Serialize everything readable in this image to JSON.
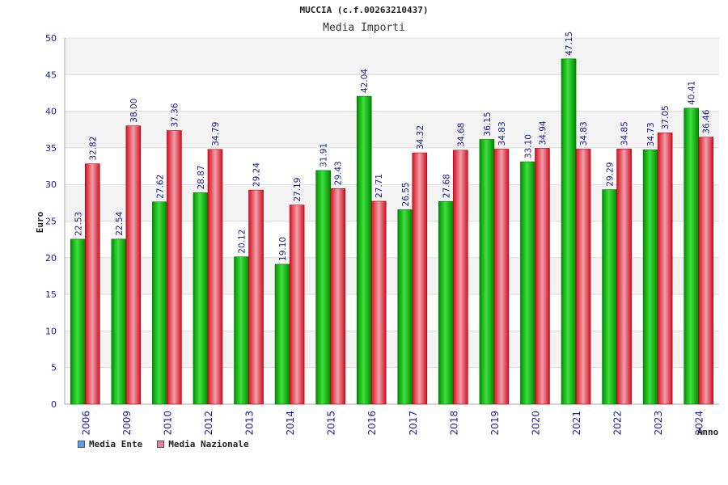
{
  "chart_data": {
    "type": "bar",
    "title": "MUCCIA (c.f.00263210437)",
    "subtitle": "Media Importi",
    "ylabel": "Euro",
    "xlabel": "Anno",
    "ylim": [
      0,
      50
    ],
    "yticks": [
      0,
      5,
      10,
      15,
      20,
      25,
      30,
      35,
      40,
      45,
      50
    ],
    "grid": true,
    "legend_position": "bottom-left",
    "categories": [
      "2006",
      "2009",
      "2010",
      "2012",
      "2013",
      "2014",
      "2015",
      "2016",
      "2017",
      "2018",
      "2019",
      "2020",
      "2021",
      "2022",
      "2023",
      "2024"
    ],
    "series": [
      {
        "name": "Media Ente",
        "color": "#00b000",
        "legend_color": "#5aa0e6",
        "values": [
          22.53,
          22.54,
          27.62,
          28.87,
          20.12,
          19.1,
          31.91,
          42.04,
          26.55,
          27.68,
          36.15,
          33.1,
          47.15,
          29.29,
          34.73,
          40.41
        ],
        "labels": [
          "22.53",
          "22.54",
          "27.62",
          "28.87",
          "20.12",
          "19.10",
          "31.91",
          "42.04",
          "26.55",
          "27.68",
          "36.15",
          "33.10",
          "47.15",
          "29.29",
          "34.73",
          "40.41"
        ]
      },
      {
        "name": "Media Nazionale",
        "color": "#e8303c",
        "legend_color": "#e080a8",
        "values": [
          32.82,
          38.0,
          37.36,
          34.79,
          29.24,
          27.19,
          29.43,
          27.71,
          34.32,
          34.68,
          34.83,
          34.94,
          34.83,
          34.85,
          37.05,
          36.46
        ],
        "labels": [
          "32.82",
          "38.00",
          "37.36",
          "34.79",
          "29.24",
          "27.19",
          "29.43",
          "27.71",
          "34.32",
          "34.68",
          "34.83",
          "34.94",
          "34.83",
          "34.85",
          "37.05",
          "36.46"
        ]
      }
    ]
  }
}
